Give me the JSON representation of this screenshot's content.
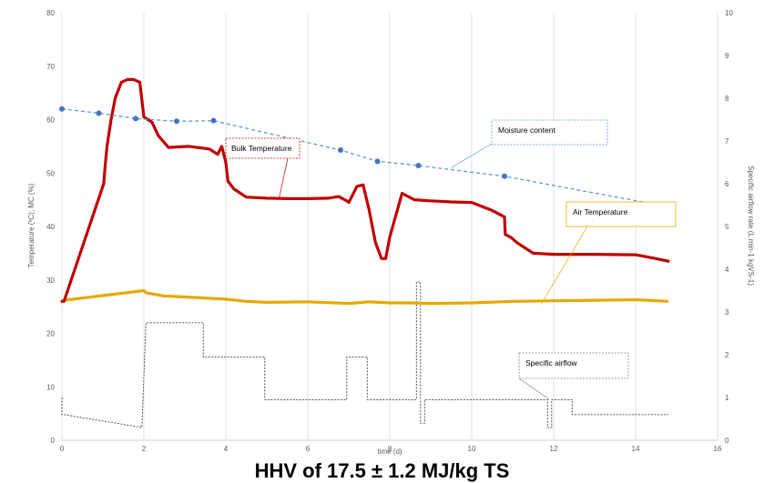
{
  "chart_data": {
    "type": "line",
    "xlabel": "time (d)",
    "ylabel": "Temperature (ºC); MC (%)",
    "y2label": "Specific airflow rate (L min-1 kgVS-1)",
    "xlim": [
      0,
      16
    ],
    "ylim": [
      0,
      80
    ],
    "y2lim": [
      0,
      10
    ],
    "x_ticks": [
      "0",
      "2",
      "4",
      "6",
      "8",
      "10",
      "12",
      "14",
      "16"
    ],
    "y_ticks": [
      "0",
      "10",
      "20",
      "30",
      "40",
      "50",
      "60",
      "70",
      "80"
    ],
    "y2_ticks": [
      "0",
      "1",
      "2",
      "3",
      "4",
      "5",
      "6",
      "7",
      "8",
      "9",
      "10"
    ],
    "grid": "vertical",
    "caption": "HHV of 17.5 ± 1.2 MJ/kg TS",
    "annotations": [
      {
        "label": "Bulk Temperature",
        "series": "bulk_temperature"
      },
      {
        "label": "Moisture content",
        "series": "moisture_content"
      },
      {
        "label": "Air Temperature",
        "series": "air_temperature"
      },
      {
        "label": "Specific airflow",
        "series": "specific_airflow"
      }
    ],
    "series": [
      {
        "key": "moisture_content",
        "axis": "left",
        "style": "dashed-with-markers",
        "color": "#5B9BD5",
        "x": [
          0.0,
          0.9,
          1.8,
          2.8,
          3.7,
          6.8,
          7.7,
          8.7,
          10.8,
          14.8
        ],
        "y": [
          62.0,
          61.2,
          60.2,
          59.7,
          59.8,
          54.3,
          52.2,
          51.4,
          49.4,
          43.7
        ]
      },
      {
        "key": "bulk_temperature",
        "axis": "left",
        "color": "#C00000",
        "x": [
          0.0,
          0.05,
          1.02,
          1.05,
          1.1,
          1.2,
          1.3,
          1.45,
          1.6,
          1.75,
          1.9,
          2.0,
          2.2,
          2.35,
          2.6,
          3.1,
          3.6,
          3.8,
          3.9,
          4.0,
          4.05,
          4.2,
          4.5,
          5.0,
          5.5,
          6.0,
          6.5,
          6.75,
          6.95,
          7.0,
          7.1,
          7.2,
          7.35,
          7.5,
          7.65,
          7.8,
          7.9,
          8.0,
          8.3,
          8.6,
          9.0,
          9.5,
          10.0,
          10.5,
          10.8,
          10.82,
          10.95,
          11.1,
          11.5,
          12.0,
          13.0,
          14.0,
          14.5,
          14.8
        ],
        "y": [
          26.0,
          26.0,
          48.0,
          51.0,
          55.0,
          60.0,
          64.0,
          67.0,
          67.5,
          67.5,
          67.0,
          60.5,
          59.5,
          57.0,
          54.8,
          55.0,
          54.5,
          53.5,
          55.0,
          52.0,
          48.5,
          47.0,
          45.5,
          45.3,
          45.2,
          45.2,
          45.3,
          45.6,
          44.8,
          44.5,
          46.0,
          47.5,
          47.8,
          43.0,
          37.0,
          34.0,
          34.0,
          38.0,
          46.2,
          45.0,
          44.8,
          44.6,
          44.5,
          43.0,
          41.8,
          38.5,
          38.0,
          37.0,
          35.0,
          34.8,
          34.8,
          34.7,
          34.0,
          33.5
        ]
      },
      {
        "key": "air_temperature",
        "axis": "left",
        "color": "#E6A800",
        "x": [
          0.0,
          0.05,
          2.0,
          2.05,
          2.5,
          3.0,
          3.5,
          4.0,
          4.5,
          5.0,
          6.0,
          7.0,
          7.5,
          8.0,
          8.5,
          9.0,
          10.0,
          11.0,
          12.0,
          13.0,
          14.0,
          14.8
        ],
        "y": [
          26.0,
          26.2,
          28.0,
          27.6,
          27.0,
          26.8,
          26.6,
          26.4,
          26.0,
          25.8,
          25.9,
          25.6,
          25.9,
          25.7,
          25.7,
          25.6,
          25.7,
          26.0,
          26.1,
          26.2,
          26.3,
          26.0
        ]
      },
      {
        "key": "specific_airflow",
        "axis": "right",
        "style": "dashed",
        "color": "#404040",
        "x": [
          0.0,
          0.0,
          0.05,
          1.95,
          1.95,
          2.05,
          2.05,
          3.45,
          3.45,
          4.95,
          4.95,
          6.95,
          6.95,
          7.45,
          7.45,
          8.65,
          8.65,
          8.75,
          8.75,
          8.85,
          8.85,
          9.35,
          9.35,
          10.95,
          10.95,
          11.85,
          11.85,
          11.95,
          11.95,
          12.45,
          12.45,
          13.4,
          13.4,
          14.8
        ],
        "y": [
          1.0,
          0.6,
          0.6,
          0.3,
          0.3,
          2.75,
          2.75,
          2.75,
          1.95,
          1.95,
          0.95,
          0.95,
          1.95,
          1.95,
          0.95,
          0.95,
          3.7,
          3.7,
          0.4,
          0.4,
          0.95,
          0.95,
          0.95,
          0.95,
          0.95,
          0.95,
          0.3,
          0.3,
          0.95,
          0.95,
          0.6,
          0.6,
          0.6,
          0.6
        ]
      }
    ]
  }
}
